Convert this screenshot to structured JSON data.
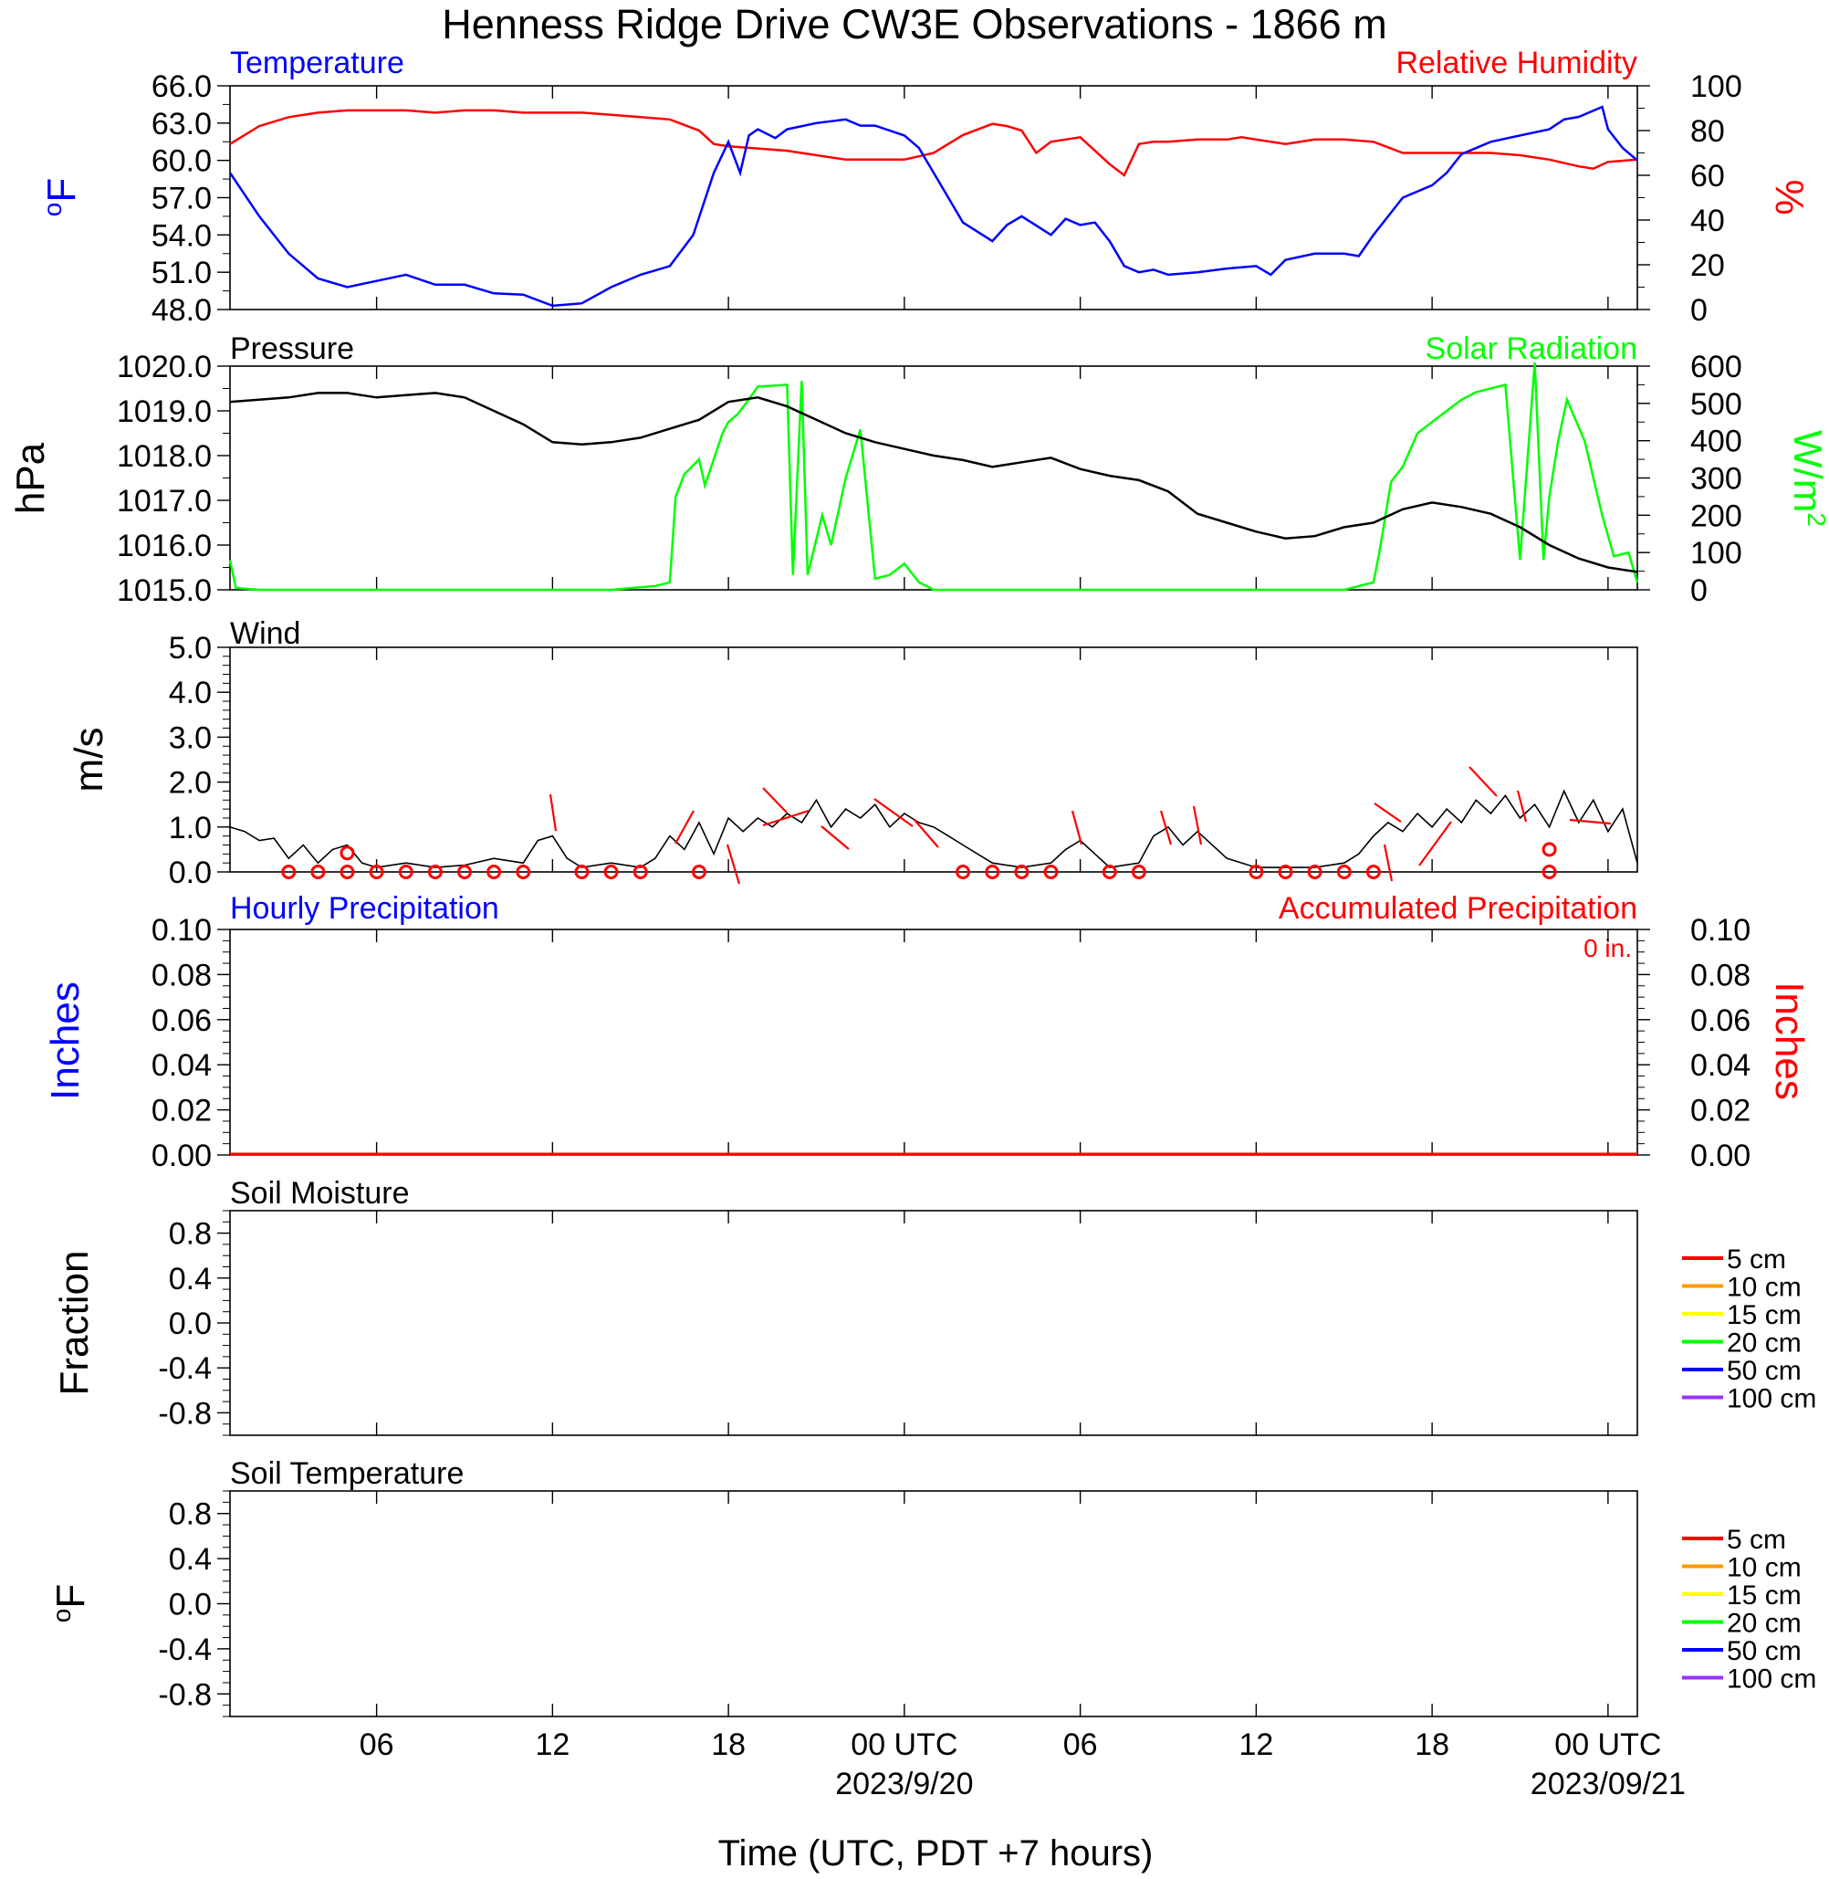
{
  "title": "Henness Ridge Drive CW3E Observations - 1866 m",
  "colors": {
    "temperature": "#0000ff",
    "humidity": "#ff0000",
    "pressure": "#000000",
    "solar": "#00ff00",
    "wind": "#000000",
    "wind_barb": "#ff0000",
    "precip_hourly": "#0000ff",
    "precip_accum": "#ff0000",
    "soil_5": "#ff0000",
    "soil_10": "#ff9900",
    "soil_15": "#ffff00",
    "soil_20": "#00ff00",
    "soil_50": "#0000ff",
    "soil_100": "#9933ff"
  },
  "x_axis": {
    "label": "Time (UTC, PDT +7 hours)",
    "ticks": [
      {
        "hour": 6,
        "label": "06"
      },
      {
        "hour": 12,
        "label": "12"
      },
      {
        "hour": 18,
        "label": "18"
      },
      {
        "hour": 24,
        "label": "00 UTC"
      },
      {
        "hour": 30,
        "label": "06"
      },
      {
        "hour": 36,
        "label": "12"
      },
      {
        "hour": 42,
        "label": "18"
      },
      {
        "hour": 48,
        "label": "00 UTC"
      }
    ],
    "dates": [
      {
        "hour": 24,
        "label": "2023/9/20"
      },
      {
        "hour": 48,
        "label": "2023/09/21"
      }
    ],
    "range_hours": [
      1,
      49
    ]
  },
  "panels": {
    "temperature": {
      "left_title": "Temperature",
      "right_title": "Relative Humidity",
      "left_unit": "oF",
      "right_unit": "%",
      "left_ticks": [
        "66.0",
        "63.0",
        "60.0",
        "57.0",
        "54.0",
        "51.0",
        "48.0"
      ],
      "right_ticks": [
        "100",
        "80",
        "60",
        "40",
        "20",
        "0"
      ]
    },
    "pressure": {
      "left_title": "Pressure",
      "right_title": "Solar Radiation",
      "left_unit": "hPa",
      "right_unit": "W/m2",
      "left_ticks": [
        "1020.0",
        "1019.0",
        "1018.0",
        "1017.0",
        "1016.0",
        "1015.0"
      ],
      "right_ticks": [
        "600",
        "500",
        "400",
        "300",
        "200",
        "100",
        "0"
      ]
    },
    "wind": {
      "left_title": "Wind",
      "left_unit": "m/s",
      "left_ticks": [
        "5.0",
        "4.0",
        "3.0",
        "2.0",
        "1.0",
        "0.0"
      ]
    },
    "precip": {
      "left_title": "Hourly Precipitation",
      "right_title": "Accumulated Precipitation",
      "total_label": "0 in.",
      "left_unit": "Inches",
      "right_unit": "Inches",
      "left_ticks": [
        "0.10",
        "0.08",
        "0.06",
        "0.04",
        "0.02",
        "0.00"
      ],
      "right_ticks": [
        "0.10",
        "0.08",
        "0.06",
        "0.04",
        "0.02",
        "0.00"
      ]
    },
    "soil_moisture": {
      "left_title": "Soil Moisture",
      "left_unit": "Fraction",
      "left_ticks": [
        "0.8",
        "0.4",
        "0.0",
        "-0.4",
        "-0.8"
      ],
      "legend": [
        "5 cm",
        "10 cm",
        "15 cm",
        "20 cm",
        "50 cm",
        "100 cm"
      ]
    },
    "soil_temperature": {
      "left_title": "Soil Temperature",
      "left_unit": "oF",
      "left_ticks": [
        "0.8",
        "0.4",
        "0.0",
        "-0.4",
        "-0.8"
      ],
      "legend": [
        "5 cm",
        "10 cm",
        "15 cm",
        "20 cm",
        "50 cm",
        "100 cm"
      ]
    }
  },
  "chart_data": [
    {
      "type": "line",
      "title": "Temperature",
      "ylabel": "oF",
      "ylim": [
        48,
        66
      ],
      "x_unit": "hours UTC since 2023-09-19 00:00",
      "series": [
        {
          "name": "Temperature",
          "x": [
            1,
            2,
            3,
            4,
            5,
            6,
            7,
            8,
            9,
            10,
            11,
            12,
            13,
            14,
            15,
            16,
            16.8,
            17.5,
            18,
            18.4,
            18.7,
            19,
            19.6,
            20,
            21,
            22,
            22.5,
            23,
            24,
            24.5,
            25,
            26,
            27,
            27.5,
            28,
            29,
            29.5,
            30,
            30.5,
            31,
            31.5,
            32,
            32.5,
            33,
            34,
            35,
            36,
            36.5,
            37,
            38,
            39,
            39.5,
            40,
            41,
            42,
            42.5,
            43,
            44,
            45,
            46,
            46.5,
            47,
            47.8,
            48,
            48.5,
            49
          ],
          "y": [
            59.0,
            55.5,
            52.5,
            50.5,
            49.8,
            50.3,
            50.8,
            50.0,
            50.0,
            49.3,
            49.2,
            48.3,
            48.5,
            49.8,
            50.8,
            51.5,
            54.0,
            59.0,
            61.5,
            59.0,
            62.0,
            62.5,
            61.8,
            62.5,
            63.0,
            63.3,
            62.8,
            62.8,
            62.0,
            61.0,
            59.0,
            55.0,
            53.5,
            54.8,
            55.5,
            54.0,
            55.3,
            54.8,
            55.0,
            53.5,
            51.5,
            51.0,
            51.2,
            50.8,
            51.0,
            51.3,
            51.5,
            50.8,
            52.0,
            52.5,
            52.5,
            52.3,
            54.0,
            57.0,
            58.0,
            59.0,
            60.5,
            61.5,
            62.0,
            62.5,
            63.3,
            63.5,
            64.3,
            62.5,
            61.0,
            60.0
          ]
        },
        {
          "name": "Relative Humidity",
          "axis": "right",
          "ylim": [
            0,
            100
          ],
          "x": [
            1,
            2,
            3,
            4,
            5,
            6,
            7,
            8,
            9,
            10,
            11,
            12,
            13,
            14,
            15,
            16,
            17,
            17.5,
            18,
            19,
            20,
            21,
            22,
            23,
            24,
            25,
            26,
            27,
            27.5,
            28,
            28.5,
            29,
            30,
            31,
            31.5,
            32,
            32.5,
            33,
            34,
            35,
            35.5,
            36,
            37,
            38,
            39,
            40,
            41,
            42,
            43,
            44,
            45,
            46,
            47,
            47.5,
            48,
            49
          ],
          "y": [
            74,
            82,
            86,
            88,
            89,
            89,
            89,
            88,
            89,
            89,
            88,
            88,
            88,
            87,
            86,
            85,
            80,
            74,
            73,
            72,
            71,
            69,
            67,
            67,
            67,
            70,
            78,
            83,
            82,
            80,
            70,
            75,
            77,
            65,
            60,
            74,
            75,
            75,
            76,
            76,
            77,
            76,
            74,
            76,
            76,
            75,
            70,
            70,
            70,
            70,
            69,
            67,
            64,
            63,
            66,
            67
          ]
        }
      ]
    },
    {
      "type": "line",
      "title": "Pressure",
      "ylabel": "hPa",
      "ylim": [
        1015,
        1020
      ],
      "series": [
        {
          "name": "Pressure",
          "x": [
            1,
            2,
            3,
            4,
            5,
            6,
            7,
            8,
            9,
            10,
            11,
            12,
            13,
            14,
            15,
            16,
            17,
            18,
            19,
            20,
            21,
            22,
            23,
            24,
            25,
            26,
            27,
            28,
            29,
            30,
            31,
            32,
            33,
            34,
            35,
            36,
            37,
            38,
            39,
            40,
            41,
            42,
            43,
            44,
            45,
            46,
            47,
            48,
            49
          ],
          "y": [
            1019.2,
            1019.25,
            1019.3,
            1019.4,
            1019.4,
            1019.3,
            1019.35,
            1019.4,
            1019.3,
            1019.0,
            1018.7,
            1018.3,
            1018.25,
            1018.3,
            1018.4,
            1018.6,
            1018.8,
            1019.2,
            1019.3,
            1019.1,
            1018.8,
            1018.5,
            1018.3,
            1018.15,
            1018.0,
            1017.9,
            1017.75,
            1017.85,
            1017.95,
            1017.7,
            1017.55,
            1017.45,
            1017.2,
            1016.7,
            1016.5,
            1016.3,
            1016.15,
            1016.2,
            1016.4,
            1016.5,
            1016.8,
            1016.95,
            1016.85,
            1016.7,
            1016.4,
            1016.0,
            1015.7,
            1015.5,
            1015.4
          ]
        },
        {
          "name": "Solar Radiation",
          "axis": "right",
          "ylim": [
            0,
            600
          ],
          "x": [
            1,
            1.2,
            2,
            8,
            14,
            15.5,
            16,
            16.2,
            16.5,
            17,
            17.2,
            17.8,
            18,
            18.3,
            18.6,
            19,
            20,
            20.2,
            20.5,
            20.7,
            21.2,
            21.5,
            22,
            22.5,
            23,
            23.5,
            24,
            24.5,
            25,
            30,
            37,
            39,
            40,
            40.2,
            40.6,
            41,
            41.5,
            42,
            42.5,
            43,
            43.5,
            44.5,
            45,
            45.5,
            45.8,
            46,
            46.3,
            46.6,
            47.2,
            47.8,
            48.2,
            48.7,
            49
          ],
          "y": [
            80,
            5,
            0,
            0,
            0,
            10,
            20,
            250,
            310,
            350,
            280,
            420,
            450,
            470,
            500,
            545,
            550,
            40,
            560,
            40,
            200,
            120,
            300,
            430,
            30,
            40,
            70,
            20,
            0,
            0,
            0,
            0,
            20,
            100,
            290,
            330,
            420,
            450,
            480,
            510,
            530,
            550,
            80,
            610,
            80,
            250,
            400,
            510,
            400,
            200,
            90,
            100,
            20
          ]
        }
      ]
    },
    {
      "type": "line",
      "title": "Wind",
      "ylabel": "m/s",
      "ylim": [
        0,
        5
      ],
      "series": [
        {
          "name": "Wind",
          "x": [
            1,
            1.5,
            2,
            2.5,
            3,
            3.5,
            4,
            4.5,
            5,
            5.5,
            6,
            7,
            8,
            9,
            10,
            11,
            11.5,
            12,
            12.5,
            13,
            14,
            15,
            15.5,
            16,
            16.5,
            17,
            17.5,
            18,
            18.5,
            19,
            19.5,
            20,
            20.5,
            21,
            21.5,
            22,
            22.5,
            23,
            23.5,
            24,
            24.5,
            25,
            25.5,
            26,
            27,
            28,
            29,
            29.5,
            30,
            30.5,
            31,
            32,
            32.5,
            33,
            33.5,
            34,
            35,
            36,
            37,
            38,
            39,
            39.5,
            40,
            40.5,
            41,
            41.5,
            42,
            42.5,
            43,
            43.5,
            44,
            44.5,
            45,
            45.5,
            46,
            46.5,
            47,
            47.5,
            48,
            48.5,
            49
          ],
          "y": [
            1.0,
            0.9,
            0.7,
            0.75,
            0.3,
            0.6,
            0.2,
            0.5,
            0.6,
            0.2,
            0.1,
            0.2,
            0.1,
            0.15,
            0.3,
            0.2,
            0.7,
            0.8,
            0.3,
            0.1,
            0.2,
            0.1,
            0.3,
            0.8,
            0.5,
            1.1,
            0.4,
            1.2,
            0.9,
            1.2,
            1.0,
            1.3,
            1.1,
            1.6,
            1.0,
            1.4,
            1.2,
            1.5,
            1.0,
            1.3,
            1.1,
            1.0,
            0.8,
            0.6,
            0.2,
            0.1,
            0.2,
            0.5,
            0.7,
            0.4,
            0.1,
            0.2,
            0.8,
            1.0,
            0.6,
            0.9,
            0.3,
            0.1,
            0.1,
            0.1,
            0.2,
            0.4,
            0.8,
            1.1,
            0.9,
            1.3,
            1.0,
            1.4,
            1.1,
            1.6,
            1.3,
            1.7,
            1.2,
            1.5,
            1.0,
            1.8,
            1.1,
            1.6,
            0.9,
            1.4,
            0.2
          ]
        }
      ],
      "calm_markers": [
        3,
        4,
        5,
        6,
        7,
        8,
        9,
        10,
        11,
        13,
        14,
        15,
        17,
        26,
        27,
        28,
        29,
        31,
        32,
        36,
        37,
        38,
        39,
        40,
        46
      ]
    },
    {
      "type": "line",
      "title": "Hourly Precipitation",
      "ylabel": "Inches",
      "ylim": [
        0,
        0.1
      ],
      "series": [
        {
          "name": "Hourly Precipitation",
          "x": [
            1,
            49
          ],
          "y": [
            0,
            0
          ]
        },
        {
          "name": "Accumulated Precipitation",
          "axis": "right",
          "x": [
            1,
            49
          ],
          "y": [
            0,
            0
          ]
        }
      ]
    },
    {
      "type": "line",
      "title": "Soil Moisture",
      "ylabel": "Fraction",
      "ylim": [
        -1,
        1
      ],
      "series": []
    },
    {
      "type": "line",
      "title": "Soil Temperature",
      "ylabel": "oF",
      "ylim": [
        -1,
        1
      ],
      "series": []
    }
  ]
}
